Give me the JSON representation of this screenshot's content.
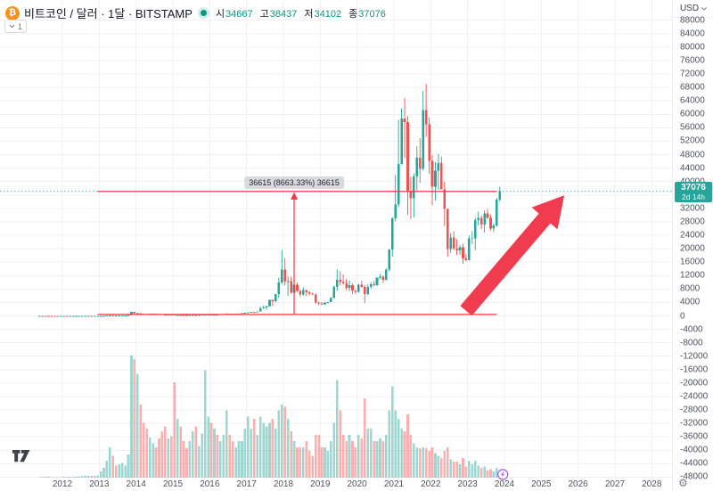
{
  "header": {
    "symbol_icon": "bitcoin-icon",
    "title": "비트코인 / 달러 · 1달 · BITSTAMP",
    "market_status": "open",
    "ohlc": {
      "o_label": "시",
      "o": "34667",
      "h_label": "고",
      "h": "38437",
      "l_label": "저",
      "l": "34102",
      "c_label": "종",
      "c": "37076"
    },
    "objects_count": "1"
  },
  "price_axis": {
    "currency": "USD",
    "current_price": "37076",
    "countdown": "2d 14h",
    "labels": [
      "88000",
      "84000",
      "80000",
      "76000",
      "72000",
      "68000",
      "64000",
      "60000",
      "56000",
      "52000",
      "48000",
      "44000",
      "40000",
      "32000",
      "28000",
      "24000",
      "20000",
      "16000",
      "12000",
      "8000",
      "4000",
      "0",
      "-4000",
      "-8000",
      "-12000",
      "-16000",
      "-20000",
      "-24000",
      "-28000",
      "-32000",
      "-36000",
      "-40000",
      "-44000",
      "-48000"
    ]
  },
  "time_axis": {
    "labels": [
      "2012",
      "2013",
      "2014",
      "2015",
      "2016",
      "2017",
      "2018",
      "2019",
      "2020",
      "2021",
      "2022",
      "2023",
      "2024",
      "2025",
      "2026",
      "2027",
      "2028"
    ]
  },
  "colors": {
    "up": "#26a69a",
    "down": "#ef5350",
    "vol_up": "rgba(38,166,154,0.45)",
    "vol_down": "rgba(239,83,80,0.45)",
    "drawing_red": "#f23645",
    "arrow_red": "#f03c4e",
    "bitcoin_orange": "#f7931a",
    "badge_bg": "#26a69a",
    "grid": "#eff1f5",
    "price_line": "#26a69a",
    "event_purple": "#a855f7"
  },
  "chart_data": {
    "type": "candlestick",
    "symbol": "BTCUSD",
    "symbol_name_kr": "비트코인 / 달러",
    "exchange": "BITSTAMP",
    "interval": "1달",
    "ylim": [
      -50000,
      92000
    ],
    "grid": true,
    "price_ticks": {
      "max": 88000,
      "min": -48000,
      "step": 4000
    },
    "x_years": [
      2012,
      2013,
      2014,
      2015,
      2016,
      2017,
      2018,
      2019,
      2020,
      2021,
      2022,
      2023,
      2024,
      2025,
      2026,
      2027,
      2028
    ],
    "volume_scale": "relative 0-100 of max bar",
    "candles": [
      [
        "2011-05",
        5,
        9,
        4.5,
        8.6,
        0.5
      ],
      [
        "2011-06",
        8.6,
        31.9,
        8.5,
        16.9,
        0.8
      ],
      [
        "2011-07",
        16.9,
        17.5,
        12,
        13.5,
        0.6
      ],
      [
        "2011-08",
        13.5,
        13.9,
        5.9,
        8.2,
        0.6
      ],
      [
        "2011-09",
        8.2,
        8.9,
        4.8,
        5.1,
        0.5
      ],
      [
        "2011-10",
        5.1,
        5.2,
        2,
        3.3,
        0.5
      ],
      [
        "2011-11",
        3.3,
        3.6,
        1.9,
        3,
        0.5
      ],
      [
        "2011-12",
        3,
        4.9,
        2.8,
        4.7,
        0.5
      ],
      [
        "2012-01",
        4.7,
        7.4,
        4.4,
        5.6,
        0.8
      ],
      [
        "2012-02",
        5.6,
        6.2,
        3.8,
        4.9,
        0.8
      ],
      [
        "2012-03",
        4.9,
        5.5,
        4.5,
        4.9,
        0.7
      ],
      [
        "2012-04",
        4.9,
        5.4,
        4.6,
        5,
        0.7
      ],
      [
        "2012-05",
        5,
        5.3,
        4.9,
        5.2,
        0.8
      ],
      [
        "2012-06",
        5.2,
        6.9,
        5.1,
        6.7,
        1.2
      ],
      [
        "2012-07",
        6.7,
        9.5,
        6.5,
        9.4,
        1.5
      ],
      [
        "2012-08",
        9.4,
        16.4,
        7.5,
        10.2,
        1.8
      ],
      [
        "2012-09",
        10.2,
        12.9,
        9.9,
        12.4,
        1.6
      ],
      [
        "2012-10",
        12.4,
        12.8,
        10.3,
        11.2,
        1.5
      ],
      [
        "2012-11",
        11.2,
        12.7,
        10.3,
        12.6,
        1.6
      ],
      [
        "2012-12",
        12.6,
        13.9,
        12.2,
        13.4,
        2
      ],
      [
        "2013-01",
        13.4,
        20.6,
        13.2,
        20.4,
        5
      ],
      [
        "2013-02",
        20.4,
        34,
        19.8,
        33.4,
        8
      ],
      [
        "2013-03",
        33.4,
        95.7,
        33,
        93,
        14
      ],
      [
        "2013-04",
        93,
        266,
        50,
        139.2,
        25
      ],
      [
        "2013-05",
        139.2,
        145,
        79,
        128.8,
        18
      ],
      [
        "2013-06",
        128.8,
        133,
        88,
        97.5,
        10
      ],
      [
        "2013-07",
        97.5,
        111,
        63,
        106.2,
        11
      ],
      [
        "2013-08",
        106.2,
        147,
        92,
        141,
        12
      ],
      [
        "2013-09",
        141,
        147,
        109,
        141.1,
        10
      ],
      [
        "2013-10",
        141.1,
        232,
        118,
        204,
        19
      ],
      [
        "2013-11",
        204,
        1242,
        198,
        1130,
        100
      ],
      [
        "2013-12",
        1130,
        1156,
        382,
        732,
        97
      ],
      [
        "2014-01",
        732,
        1015,
        716,
        806,
        85
      ],
      [
        "2014-02",
        806,
        830,
        400,
        550,
        60
      ],
      [
        "2014-03",
        550,
        710,
        436,
        454,
        45
      ],
      [
        "2014-04",
        454,
        548,
        340,
        446,
        40
      ],
      [
        "2014-05",
        446,
        634,
        420,
        627,
        33
      ],
      [
        "2014-06",
        627,
        680,
        540,
        635,
        28
      ],
      [
        "2014-07",
        635,
        658,
        565,
        589,
        25
      ],
      [
        "2014-08",
        589,
        600,
        442,
        481,
        32
      ],
      [
        "2014-09",
        481,
        497,
        365,
        375,
        38
      ],
      [
        "2014-10",
        375,
        412,
        275,
        338,
        42
      ],
      [
        "2014-11",
        338,
        460,
        320,
        378,
        32
      ],
      [
        "2014-12",
        378,
        384,
        285,
        320,
        34
      ],
      [
        "2015-01",
        320,
        324,
        152,
        217,
        78
      ],
      [
        "2015-02",
        217,
        272,
        210,
        254,
        48
      ],
      [
        "2015-03",
        254,
        300,
        236,
        244,
        42
      ],
      [
        "2015-04",
        244,
        262,
        210,
        236,
        30
      ],
      [
        "2015-05",
        236,
        248,
        226,
        230,
        24
      ],
      [
        "2015-06",
        230,
        268,
        219,
        263,
        30
      ],
      [
        "2015-07",
        263,
        318,
        255,
        284,
        38
      ],
      [
        "2015-08",
        284,
        286,
        198,
        230,
        42
      ],
      [
        "2015-09",
        230,
        246,
        223,
        236,
        26
      ],
      [
        "2015-10",
        236,
        334,
        234,
        314,
        36
      ],
      [
        "2015-11",
        314,
        504,
        300,
        377,
        88
      ],
      [
        "2015-12",
        377,
        467,
        350,
        430,
        50
      ],
      [
        "2016-01",
        430,
        463,
        351,
        368,
        45
      ],
      [
        "2016-02",
        368,
        447,
        365,
        437,
        40
      ],
      [
        "2016-03",
        437,
        444,
        383,
        416,
        35
      ],
      [
        "2016-04",
        416,
        470,
        410,
        448,
        30
      ],
      [
        "2016-05",
        448,
        550,
        438,
        531,
        35
      ],
      [
        "2016-06",
        531,
        780,
        520,
        673,
        55
      ],
      [
        "2016-07",
        673,
        706,
        600,
        624,
        35
      ],
      [
        "2016-08",
        624,
        630,
        465,
        575,
        30
      ],
      [
        "2016-09",
        575,
        628,
        565,
        609,
        25
      ],
      [
        "2016-10",
        609,
        720,
        595,
        700,
        30
      ],
      [
        "2016-11",
        700,
        755,
        670,
        745,
        30
      ],
      [
        "2016-12",
        745,
        982,
        740,
        963,
        40
      ],
      [
        "2017-01",
        963,
        1191,
        750,
        970,
        50
      ],
      [
        "2017-02",
        970,
        1220,
        920,
        1190,
        40
      ],
      [
        "2017-03",
        1190,
        1290,
        890,
        1080,
        48
      ],
      [
        "2017-04",
        1080,
        1347,
        1060,
        1347,
        35
      ],
      [
        "2017-05",
        1347,
        2760,
        1320,
        2303,
        50
      ],
      [
        "2017-06",
        2303,
        2980,
        2100,
        2480,
        45
      ],
      [
        "2017-07",
        2480,
        2920,
        1830,
        2875,
        42
      ],
      [
        "2017-08",
        2875,
        4743,
        2650,
        4735,
        45
      ],
      [
        "2017-09",
        4735,
        4960,
        2970,
        4360,
        48
      ],
      [
        "2017-10",
        4360,
        6450,
        4110,
        6440,
        40
      ],
      [
        "2017-11",
        6440,
        11400,
        5400,
        9950,
        55
      ],
      [
        "2017-12",
        9950,
        19666,
        9380,
        13850,
        60
      ],
      [
        "2018-01",
        13850,
        17176,
        9035,
        10220,
        58
      ],
      [
        "2018-02",
        10220,
        11780,
        5920,
        10360,
        48
      ],
      [
        "2018-03",
        10360,
        11660,
        6600,
        6930,
        38
      ],
      [
        "2018-04",
        6930,
        9760,
        6430,
        9240,
        30
      ],
      [
        "2018-05",
        9240,
        9990,
        7040,
        7490,
        25
      ],
      [
        "2018-06",
        7490,
        7750,
        5780,
        6400,
        25
      ],
      [
        "2018-07",
        6400,
        8500,
        6070,
        7740,
        25
      ],
      [
        "2018-08",
        7740,
        7760,
        5880,
        7010,
        30
      ],
      [
        "2018-09",
        7010,
        7410,
        6120,
        6630,
        22
      ],
      [
        "2018-10",
        6630,
        6830,
        6190,
        6340,
        18
      ],
      [
        "2018-11",
        6340,
        6540,
        3650,
        4020,
        35
      ],
      [
        "2018-12",
        4020,
        4290,
        3150,
        3740,
        35
      ],
      [
        "2019-01",
        3740,
        4110,
        3350,
        3460,
        25
      ],
      [
        "2019-02",
        3460,
        4190,
        3330,
        3850,
        25
      ],
      [
        "2019-03",
        3850,
        4140,
        3670,
        4100,
        22
      ],
      [
        "2019-04",
        4100,
        5640,
        4050,
        5320,
        30
      ],
      [
        "2019-05",
        5320,
        9090,
        5270,
        8560,
        45
      ],
      [
        "2019-06",
        8560,
        13880,
        7480,
        10800,
        80
      ],
      [
        "2019-07",
        10800,
        13200,
        9080,
        10080,
        55
      ],
      [
        "2019-08",
        10080,
        12320,
        9350,
        9630,
        35
      ],
      [
        "2019-09",
        9630,
        10950,
        7700,
        8310,
        30
      ],
      [
        "2019-10",
        8310,
        10540,
        7300,
        9150,
        35
      ],
      [
        "2019-11",
        9150,
        9620,
        6520,
        7550,
        30
      ],
      [
        "2019-12",
        7550,
        7690,
        6430,
        7200,
        25
      ],
      [
        "2020-01",
        7200,
        9570,
        6850,
        9350,
        35
      ],
      [
        "2020-02",
        9350,
        10500,
        8400,
        8600,
        32
      ],
      [
        "2020-03",
        8600,
        9180,
        3850,
        6440,
        65
      ],
      [
        "2020-04",
        6440,
        9460,
        6150,
        8630,
        40
      ],
      [
        "2020-05",
        8630,
        10070,
        8100,
        9450,
        40
      ],
      [
        "2020-06",
        9450,
        10380,
        8830,
        9140,
        30
      ],
      [
        "2020-07",
        9140,
        11440,
        8900,
        11350,
        30
      ],
      [
        "2020-08",
        11350,
        12480,
        11000,
        11660,
        32
      ],
      [
        "2020-09",
        11660,
        12050,
        9820,
        10780,
        30
      ],
      [
        "2020-10",
        10780,
        14100,
        10520,
        13800,
        35
      ],
      [
        "2020-11",
        13800,
        19900,
        13200,
        19700,
        55
      ],
      [
        "2020-12",
        19700,
        29300,
        17600,
        29000,
        75
      ],
      [
        "2021-01",
        29000,
        41950,
        28130,
        33140,
        55
      ],
      [
        "2021-02",
        33140,
        58350,
        32320,
        45240,
        48
      ],
      [
        "2021-03",
        45240,
        61780,
        45000,
        58800,
        40
      ],
      [
        "2021-04",
        58800,
        64850,
        46950,
        57750,
        38
      ],
      [
        "2021-05",
        57750,
        59500,
        30000,
        37330,
        52
      ],
      [
        "2021-06",
        37330,
        41330,
        28800,
        35040,
        35
      ],
      [
        "2021-07",
        35040,
        42450,
        29300,
        41490,
        28
      ],
      [
        "2021-08",
        41490,
        50500,
        37330,
        47130,
        25
      ],
      [
        "2021-09",
        47130,
        52920,
        39600,
        43790,
        24
      ],
      [
        "2021-10",
        43790,
        66990,
        43290,
        61320,
        25
      ],
      [
        "2021-11",
        61320,
        69000,
        53300,
        57010,
        24
      ],
      [
        "2021-12",
        57010,
        59050,
        42330,
        46220,
        22
      ],
      [
        "2022-01",
        46220,
        47950,
        32950,
        38480,
        25
      ],
      [
        "2022-02",
        38480,
        45820,
        34320,
        43190,
        20
      ],
      [
        "2022-03",
        43190,
        48190,
        37580,
        45540,
        18
      ],
      [
        "2022-04",
        45540,
        47440,
        37650,
        37650,
        16
      ],
      [
        "2022-05",
        37650,
        40020,
        26700,
        31790,
        22
      ],
      [
        "2022-06",
        31790,
        31960,
        17600,
        19940,
        25
      ],
      [
        "2022-07",
        19940,
        24660,
        18770,
        23300,
        15
      ],
      [
        "2022-08",
        23300,
        25200,
        19540,
        20050,
        13
      ],
      [
        "2022-09",
        20050,
        22800,
        18130,
        19430,
        13
      ],
      [
        "2022-10",
        19430,
        21080,
        18200,
        20490,
        11
      ],
      [
        "2022-11",
        20490,
        21480,
        15480,
        17170,
        16
      ],
      [
        "2022-12",
        17170,
        18390,
        16260,
        16540,
        9
      ],
      [
        "2023-01",
        16540,
        23960,
        16490,
        23130,
        14
      ],
      [
        "2023-02",
        23130,
        25250,
        21400,
        23140,
        11
      ],
      [
        "2023-03",
        23140,
        29180,
        19550,
        28470,
        14
      ],
      [
        "2023-04",
        28470,
        31050,
        26940,
        29230,
        10
      ],
      [
        "2023-05",
        29230,
        29850,
        25810,
        27220,
        8
      ],
      [
        "2023-06",
        27220,
        31400,
        24800,
        30470,
        9
      ],
      [
        "2023-07",
        30470,
        31800,
        28860,
        29230,
        6
      ],
      [
        "2023-08",
        29230,
        30100,
        25350,
        25930,
        7
      ],
      [
        "2023-09",
        25930,
        27480,
        24900,
        26970,
        5
      ],
      [
        "2023-10",
        26970,
        35150,
        26540,
        34660,
        8
      ],
      [
        "2023-11",
        34667,
        38437,
        34102,
        37076,
        6
      ]
    ],
    "annotations": [
      {
        "type": "hline",
        "price": 37038,
        "from": "2012-12",
        "to": "2023-10"
      },
      {
        "type": "hline",
        "price": 423,
        "from": "2012-12",
        "to": "2023-10"
      },
      {
        "type": "measure",
        "time": "2018-04",
        "price_from": 423,
        "price_to": 37038,
        "label": "36615 (8663.33%) 36615"
      },
      {
        "type": "arrow",
        "from": {
          "time": "2022-12",
          "price": 1500
        },
        "to": {
          "time": "2025-08",
          "price": 35900
        }
      },
      {
        "type": "price_line",
        "price": 37076,
        "style": "dashed"
      },
      {
        "type": "event",
        "time": "2023-12",
        "icon": "lightning-icon"
      }
    ]
  }
}
